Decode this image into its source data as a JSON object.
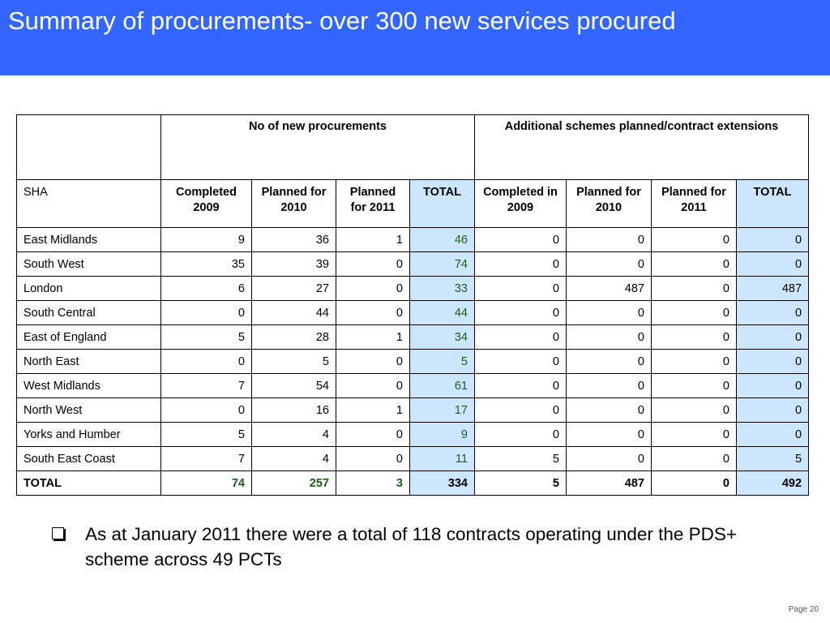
{
  "slide": {
    "title": "Summary of procurements- over 300 new services procured",
    "page": "Page 20"
  },
  "colors": {
    "title_band": "#3366ff",
    "total_cell": "#cce6ff",
    "total_text_green": "#1a5c1a"
  },
  "table": {
    "group_headers": {
      "procurements": "No of new procurements",
      "additional": "Additional schemes planned/contract extensions"
    },
    "columns": {
      "sha": "SHA",
      "completed_2009": "Completed 2009",
      "planned_2010": "Planned for 2010",
      "planned_2011": "Planned for 2011",
      "total": "TOTAL",
      "completed_in_2009": "Completed in 2009",
      "planned_2010_b": "Planned for 2010",
      "planned_2011_b": "Planned for 2011",
      "total_b": "TOTAL"
    },
    "rows": [
      {
        "sha": "East Midlands",
        "c1": "9",
        "c2": "36",
        "c3": "1",
        "t1": "46",
        "c4": "0",
        "c5": "0",
        "c6": "0",
        "t2": "0"
      },
      {
        "sha": "South West",
        "c1": "35",
        "c2": "39",
        "c3": "0",
        "t1": "74",
        "c4": "0",
        "c5": "0",
        "c6": "0",
        "t2": "0"
      },
      {
        "sha": "London",
        "c1": "6",
        "c2": "27",
        "c3": "0",
        "t1": "33",
        "c4": "0",
        "c5": "487",
        "c6": "0",
        "t2": "487"
      },
      {
        "sha": "South Central",
        "c1": "0",
        "c2": "44",
        "c3": "0",
        "t1": "44",
        "c4": "0",
        "c5": "0",
        "c6": "0",
        "t2": "0"
      },
      {
        "sha": "East of England",
        "c1": "5",
        "c2": "28",
        "c3": "1",
        "t1": "34",
        "c4": "0",
        "c5": "0",
        "c6": "0",
        "t2": "0"
      },
      {
        "sha": "North East",
        "c1": "0",
        "c2": "5",
        "c3": "0",
        "t1": "5",
        "c4": "0",
        "c5": "0",
        "c6": "0",
        "t2": "0"
      },
      {
        "sha": "West Midlands",
        "c1": "7",
        "c2": "54",
        "c3": "0",
        "t1": "61",
        "c4": "0",
        "c5": "0",
        "c6": "0",
        "t2": "0"
      },
      {
        "sha": "North West",
        "c1": "0",
        "c2": "16",
        "c3": "1",
        "t1": "17",
        "c4": "0",
        "c5": "0",
        "c6": "0",
        "t2": "0"
      },
      {
        "sha": "Yorks and Humber",
        "c1": "5",
        "c2": "4",
        "c3": "0",
        "t1": "9",
        "c4": "0",
        "c5": "0",
        "c6": "0",
        "t2": "0"
      },
      {
        "sha": "South East Coast",
        "c1": "7",
        "c2": "4",
        "c3": "0",
        "t1": "11",
        "c4": "5",
        "c5": "0",
        "c6": "0",
        "t2": "5"
      }
    ],
    "total_row": {
      "sha": "TOTAL",
      "c1": "74",
      "c2": "257",
      "c3": "3",
      "t1": "334",
      "c4": "5",
      "c5": "487",
      "c6": "0",
      "t2": "492"
    }
  },
  "note": {
    "text": "As at January 2011 there were a total of 118 contracts operating under the PDS+ scheme across 49 PCTs",
    "icon": "checkbox-bullet-icon"
  }
}
